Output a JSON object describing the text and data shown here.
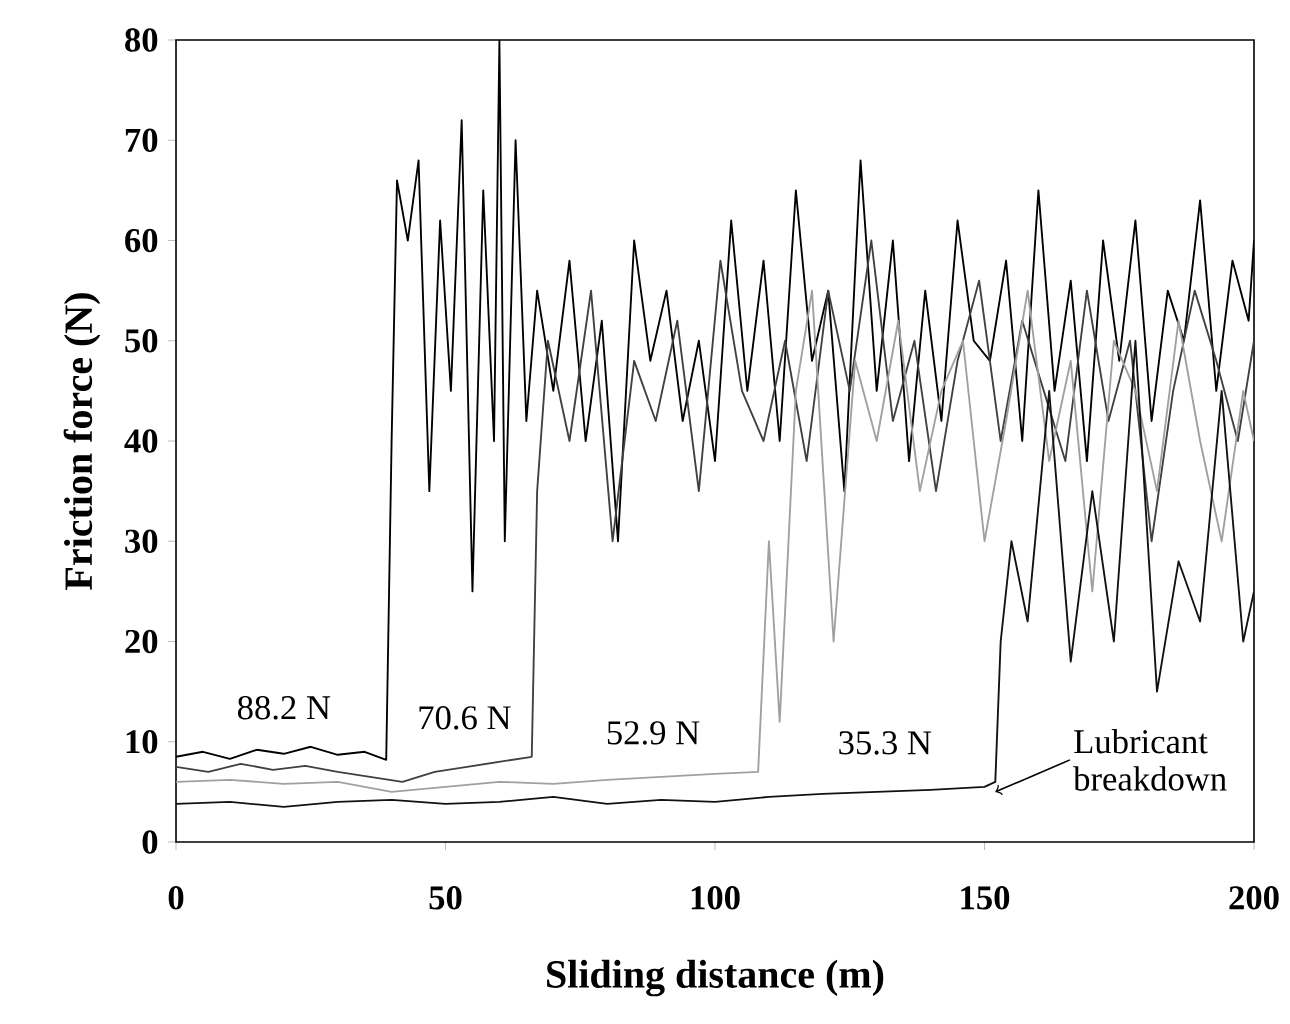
{
  "chart_data": {
    "type": "line",
    "xlabel": "Sliding distance (m)",
    "ylabel": "Friction force (N)",
    "xlim": [
      0,
      200
    ],
    "xticks": [
      0,
      50,
      100,
      150,
      200
    ],
    "ylim": [
      0,
      80
    ],
    "yticks": [
      0,
      10,
      20,
      30,
      40,
      50,
      60,
      70,
      80
    ],
    "grid": false,
    "legend": false,
    "marker": "none",
    "line_style": "solid",
    "series": [
      {
        "name": "88.2 N",
        "color": "#000000",
        "x": [
          0,
          5,
          10,
          15,
          20,
          25,
          30,
          35,
          39,
          40,
          41,
          43,
          45,
          47,
          49,
          51,
          53,
          55,
          57,
          59,
          60,
          61,
          63,
          65,
          67,
          70,
          73,
          76,
          79,
          82,
          85,
          88,
          91,
          94,
          97,
          100,
          103,
          106,
          109,
          112,
          115,
          118,
          121,
          124,
          127,
          130,
          133,
          136,
          139,
          142,
          145,
          148,
          151,
          154,
          157,
          160,
          163,
          166,
          169,
          172,
          175,
          178,
          181,
          184,
          187,
          190,
          193,
          196,
          199,
          200
        ],
        "values": [
          8.5,
          9,
          8.3,
          9.2,
          8.8,
          9.5,
          8.7,
          9,
          8.2,
          40,
          66,
          60,
          68,
          35,
          62,
          45,
          72,
          25,
          65,
          40,
          80,
          30,
          70,
          42,
          55,
          45,
          58,
          40,
          52,
          30,
          60,
          48,
          55,
          42,
          50,
          38,
          62,
          45,
          58,
          40,
          65,
          48,
          55,
          35,
          68,
          45,
          60,
          38,
          55,
          42,
          62,
          50,
          48,
          58,
          40,
          65,
          45,
          56,
          38,
          60,
          48,
          62,
          42,
          55,
          50,
          64,
          45,
          58,
          52,
          60
        ]
      },
      {
        "name": "70.6 N",
        "color": "#404040",
        "x": [
          0,
          6,
          12,
          18,
          24,
          30,
          36,
          42,
          48,
          54,
          60,
          66,
          67,
          69,
          73,
          77,
          81,
          85,
          89,
          93,
          97,
          101,
          105,
          109,
          113,
          117,
          121,
          125,
          129,
          133,
          137,
          141,
          145,
          149,
          153,
          157,
          161,
          165,
          169,
          173,
          177,
          181,
          185,
          189,
          193,
          197,
          200
        ],
        "values": [
          7.5,
          7,
          7.8,
          7.2,
          7.6,
          7,
          6.5,
          6,
          7,
          7.5,
          8,
          8.5,
          35,
          50,
          40,
          55,
          30,
          48,
          42,
          52,
          35,
          58,
          45,
          40,
          50,
          38,
          55,
          45,
          60,
          42,
          50,
          35,
          48,
          56,
          40,
          52,
          45,
          38,
          55,
          42,
          50,
          30,
          45,
          55,
          48,
          40,
          50
        ]
      },
      {
        "name": "52.9 N",
        "color": "#a0a0a0",
        "x": [
          0,
          10,
          20,
          30,
          40,
          50,
          60,
          70,
          80,
          90,
          100,
          108,
          110,
          112,
          115,
          118,
          122,
          126,
          130,
          134,
          138,
          142,
          146,
          150,
          154,
          158,
          162,
          166,
          170,
          174,
          178,
          182,
          186,
          190,
          194,
          198,
          200
        ],
        "values": [
          6,
          6.2,
          5.8,
          6,
          5,
          5.5,
          6,
          5.8,
          6.2,
          6.5,
          6.8,
          7,
          30,
          12,
          45,
          55,
          20,
          48,
          40,
          52,
          35,
          45,
          50,
          30,
          42,
          55,
          38,
          48,
          25,
          50,
          45,
          35,
          52,
          40,
          30,
          45,
          40
        ]
      },
      {
        "name": "35.3 N",
        "color": "#111111",
        "x": [
          0,
          10,
          20,
          30,
          40,
          50,
          60,
          70,
          80,
          90,
          100,
          110,
          120,
          130,
          140,
          150,
          152,
          153,
          155,
          158,
          162,
          166,
          170,
          174,
          178,
          182,
          186,
          190,
          194,
          198,
          200
        ],
        "values": [
          3.8,
          4,
          3.5,
          4,
          4.2,
          3.8,
          4,
          4.5,
          3.8,
          4.2,
          4,
          4.5,
          4.8,
          5,
          5.2,
          5.5,
          6,
          20,
          30,
          22,
          45,
          18,
          35,
          20,
          50,
          15,
          28,
          22,
          45,
          20,
          25
        ]
      }
    ],
    "annotations": [
      {
        "text": "Lubricant breakdown",
        "x": 152,
        "y": 5
      }
    ]
  }
}
